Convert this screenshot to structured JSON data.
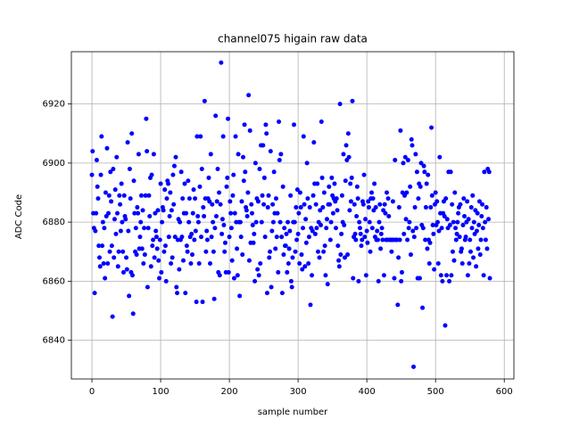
{
  "chart_data": {
    "type": "scatter",
    "title": "channel075 higain raw data",
    "xlabel": "sample number",
    "ylabel": "ADC Code",
    "color": "#0000ff",
    "grid": true,
    "xlim": [
      -29.9,
      614
    ],
    "ylim": [
      6826.9,
      6937.7
    ],
    "xticks": [
      0,
      100,
      200,
      300,
      400,
      500,
      600
    ],
    "yticks": [
      6840,
      6860,
      6880,
      6900,
      6920
    ],
    "x": [
      0,
      1,
      2,
      3,
      4,
      5,
      6,
      7,
      8,
      9,
      10,
      11,
      12,
      13,
      14,
      15,
      16,
      17,
      18,
      19,
      20,
      21,
      22,
      23,
      24,
      25,
      26,
      27,
      28,
      29,
      30,
      31,
      32,
      33,
      34,
      35,
      36,
      37,
      38,
      39,
      40,
      41,
      42,
      43,
      44,
      45,
      46,
      47,
      48,
      49,
      50,
      51,
      52,
      53,
      54,
      55,
      56,
      57,
      58,
      59,
      60,
      61,
      62,
      63,
      64,
      65,
      66,
      67,
      68,
      69,
      70,
      71,
      72,
      73,
      74,
      75,
      76,
      77,
      78,
      79,
      80,
      81,
      82,
      83,
      84,
      85,
      86,
      87,
      88,
      89,
      90,
      91,
      92,
      93,
      94,
      95,
      96,
      97,
      98,
      99,
      100,
      101,
      102,
      103,
      104,
      105,
      106,
      107,
      108,
      109,
      110,
      111,
      112,
      113,
      114,
      115,
      116,
      117,
      118,
      119,
      120,
      121,
      122,
      123,
      124,
      125,
      126,
      127,
      128,
      129,
      130,
      131,
      132,
      133,
      134,
      135,
      136,
      137,
      138,
      139,
      140,
      141,
      142,
      143,
      144,
      145,
      146,
      147,
      148,
      149,
      150,
      151,
      152,
      153,
      154,
      155,
      156,
      157,
      158,
      159,
      160,
      161,
      162,
      163,
      164,
      165,
      166,
      167,
      168,
      169,
      170,
      171,
      172,
      173,
      174,
      175,
      176,
      177,
      178,
      179,
      180,
      181,
      182,
      183,
      184,
      185,
      186,
      187,
      188,
      189,
      190,
      191,
      192,
      193,
      194,
      195,
      196,
      197,
      198,
      199,
      200,
      201,
      202,
      203,
      204,
      205,
      206,
      207,
      208,
      209,
      210,
      211,
      212,
      213,
      214,
      215,
      216,
      217,
      218,
      219,
      220,
      221,
      222,
      223,
      224,
      225,
      226,
      227,
      228,
      229,
      230,
      231,
      232,
      233,
      234,
      235,
      236,
      237,
      238,
      239,
      240,
      241,
      242,
      243,
      244,
      245,
      246,
      247,
      248,
      249,
      250,
      251,
      252,
      253,
      254,
      255,
      256,
      257,
      258,
      259,
      260,
      261,
      262,
      263,
      264,
      265,
      266,
      267,
      268,
      269,
      270,
      271,
      272,
      273,
      274,
      275,
      276,
      277,
      278,
      279,
      280,
      281,
      282,
      283,
      284,
      285,
      286,
      287,
      288,
      289,
      290,
      291,
      292,
      293,
      294,
      295,
      296,
      297,
      298,
      299,
      300,
      301,
      302,
      303,
      304,
      305,
      306,
      307,
      308,
      309,
      310,
      311,
      312,
      313,
      314,
      315,
      316,
      317,
      318,
      319,
      320,
      321,
      322,
      323,
      324,
      325,
      326,
      327,
      328,
      329,
      330,
      331,
      332,
      333,
      334,
      335,
      336,
      337,
      338,
      339,
      340,
      341,
      342,
      343,
      344,
      345,
      346,
      347,
      348,
      349,
      350,
      351,
      352,
      353,
      354,
      355,
      356,
      357,
      358,
      359,
      360,
      361,
      362,
      363,
      364,
      365,
      366,
      367,
      368,
      369,
      370,
      371,
      372,
      373,
      374,
      375,
      376,
      377,
      378,
      379,
      380,
      381,
      382,
      383,
      384,
      385,
      386,
      387,
      388,
      389,
      390,
      391,
      392,
      393,
      394,
      395,
      396,
      397,
      398,
      399,
      400,
      401,
      402,
      403,
      404,
      405,
      406,
      407,
      408,
      409,
      410,
      411,
      412,
      413,
      414,
      415,
      416,
      417,
      418,
      419,
      420,
      421,
      422,
      423,
      424,
      425,
      426,
      427,
      428,
      429,
      430,
      431,
      432,
      433,
      434,
      435,
      436,
      437,
      438,
      439,
      440,
      441,
      442,
      443,
      444,
      445,
      446,
      447,
      448,
      449,
      450,
      451,
      452,
      453,
      454,
      455,
      456,
      457,
      458,
      459,
      460,
      461,
      462,
      463,
      464,
      465,
      466,
      467,
      468,
      469,
      470,
      471,
      472,
      473,
      474,
      475,
      476,
      477,
      478,
      479,
      480,
      481,
      482,
      483,
      484,
      485,
      486,
      487,
      488,
      489,
      490,
      491,
      492,
      493,
      494,
      495,
      496,
      497,
      498,
      499,
      500,
      501,
      502,
      503,
      504,
      505,
      506,
      507,
      508,
      509,
      510,
      511,
      512,
      513,
      514,
      515,
      516,
      517,
      518,
      519,
      520,
      521,
      522,
      523,
      524,
      525,
      526,
      527,
      528,
      529,
      530,
      531,
      532,
      533,
      534,
      535,
      536,
      537,
      538,
      539,
      540,
      541,
      542,
      543,
      544,
      545,
      546,
      547,
      548,
      549,
      550,
      551,
      552,
      553,
      554,
      555,
      556,
      557,
      558,
      559,
      560,
      561,
      562,
      563,
      564,
      565,
      566,
      567,
      568,
      569,
      570,
      571,
      572,
      573,
      574,
      575,
      576,
      577,
      578,
      579
    ],
    "values": [
      6896,
      6904,
      6883,
      6878,
      6856,
      6877,
      6883,
      6901,
      6892,
      6888,
      6872,
      6868,
      6865,
      6896,
      6909,
      6872,
      6880,
      6866,
      6878,
      6861,
      6890,
      6882,
      6905,
      6866,
      6883,
      6889,
      6870,
      6897,
      6887,
      6872,
      6848,
      6898,
      6868,
      6881,
      6891,
      6876,
      6902,
      6883,
      6865,
      6870,
      6889,
      6886,
      6877,
      6893,
      6880,
      6870,
      6863,
      6889,
      6882,
      6881,
      6868,
      6864,
      6907,
      6877,
      6855,
      6898,
      6888,
      6863,
      6910,
      6862,
      6849,
      6894,
      6883,
      6870,
      6878,
      6869,
      6885,
      6883,
      6903,
      6871,
      6875,
      6880,
      6889,
      6871,
      6884,
      6866,
      6878,
      6869,
      6889,
      6915,
      6904,
      6858,
      6878,
      6889,
      6882,
      6895,
      6865,
      6896,
      6872,
      6874,
      6903,
      6868,
      6883,
      6877,
      6875,
      6871,
      6884,
      6867,
      6861,
      6874,
      6893,
      6863,
      6880,
      6885,
      6884,
      6870,
      6891,
      6872,
      6860,
      6888,
      6894,
      6893,
      6875,
      6882,
      6890,
      6866,
      6884,
      6868,
      6896,
      6886,
      6899,
      6875,
      6902,
      6858,
      6856,
      6874,
      6881,
      6864,
      6880,
      6874,
      6897,
      6875,
      6888,
      6867,
      6883,
      6893,
      6856,
      6883,
      6872,
      6870,
      6894,
      6880,
      6888,
      6875,
      6866,
      6876,
      6869,
      6883,
      6891,
      6874,
      6888,
      6877,
      6853,
      6909,
      6882,
      6880,
      6866,
      6892,
      6909,
      6875,
      6898,
      6853,
      6885,
      6882,
      6921,
      6888,
      6870,
      6877,
      6874,
      6888,
      6895,
      6887,
      6866,
      6903,
      6875,
      6886,
      6880,
      6870,
      6854,
      6878,
      6916,
      6882,
      6887,
      6898,
      6863,
      6890,
      6862,
      6886,
      6934,
      6876,
      6881,
      6909,
      6879,
      6870,
      6873,
      6863,
      6892,
      6895,
      6915,
      6863,
      6875,
      6887,
      6883,
      6878,
      6867,
      6889,
      6896,
      6861,
      6883,
      6909,
      6880,
      6871,
      6862,
      6903,
      6880,
      6855,
      6880,
      6875,
      6887,
      6869,
      6902,
      6894,
      6913,
      6897,
      6885,
      6884,
      6882,
      6890,
      6923,
      6867,
      6911,
      6873,
      6886,
      6883,
      6879,
      6873,
      6876,
      6860,
      6900,
      6880,
      6888,
      6864,
      6887,
      6862,
      6898,
      6866,
      6906,
      6880,
      6889,
      6906,
      6886,
      6895,
      6875,
      6913,
      6910,
      6856,
      6885,
      6889,
      6868,
      6870,
      6904,
      6858,
      6877,
      6886,
      6880,
      6897,
      6883,
      6871,
      6888,
      6875,
      6883,
      6863,
      6914,
      6901,
      6880,
      6903,
      6875,
      6856,
      6892,
      6869,
      6878,
      6872,
      6872,
      6876,
      6863,
      6880,
      6866,
      6871,
      6877,
      6889,
      6860,
      6858,
      6868,
      6880,
      6913,
      6880,
      6870,
      6885,
      6874,
      6891,
      6876,
      6883,
      6866,
      6890,
      6885,
      6869,
      6864,
      6878,
      6909,
      6886,
      6865,
      6881,
      6873,
      6900,
      6888,
      6866,
      6875,
      6885,
      6852,
      6878,
      6862,
      6877,
      6889,
      6907,
      6893,
      6876,
      6886,
      6878,
      6893,
      6870,
      6880,
      6868,
      6884,
      6879,
      6914,
      6895,
      6885,
      6870,
      6890,
      6872,
      6862,
      6878,
      6881,
      6859,
      6886,
      6892,
      6886,
      6874,
      6880,
      6895,
      6889,
      6883,
      6888,
      6893,
      6887,
      6878,
      6888,
      6884,
      6872,
      6867,
      6865,
      6920,
      6869,
      6876,
      6889,
      6880,
      6903,
      6879,
      6868,
      6894,
      6906,
      6901,
      6869,
      6910,
      6902,
      6884,
      6893,
      6887,
      6895,
      6921,
      6861,
      6875,
      6886,
      6876,
      6874,
      6882,
      6892,
      6888,
      6860,
      6880,
      6878,
      6876,
      6872,
      6874,
      6887,
      6886,
      6896,
      6875,
      6881,
      6862,
      6877,
      6873,
      6887,
      6885,
      6880,
      6870,
      6888,
      6890,
      6878,
      6888,
      6884,
      6893,
      6875,
      6885,
      6874,
      6877,
      6874,
      6860,
      6880,
      6886,
      6871,
      6876,
      6878,
      6874,
      6884,
      6862,
      6886,
      6883,
      6874,
      6890,
      6874,
      6888,
      6882,
      6874,
      6874,
      6874,
      6870,
      6874,
      6887,
      6874,
      6861,
      6901,
      6874,
      6874,
      6874,
      6852,
      6868,
      6885,
      6874,
      6911,
      6860,
      6863,
      6890,
      6900,
      6876,
      6889,
      6902,
      6881,
      6890,
      6874,
      6901,
      6878,
      6880,
      6892,
      6869,
      6908,
      6906,
      6877,
      6831,
      6875,
      6885,
      6903,
      6878,
      6897,
      6861,
      6888,
      6893,
      6861,
      6892,
      6900,
      6879,
      6851,
      6878,
      6899,
      6897,
      6874,
      6885,
      6893,
      6871,
      6896,
      6874,
      6866,
      6873,
      6885,
      6912,
      6889,
      6879,
      6876,
      6864,
      6886,
      6890,
      6879,
      6887,
      6880,
      6866,
      6877,
      6902,
      6883,
      6862,
      6878,
      6860,
      6883,
      6887,
      6882,
      6845,
      6888,
      6862,
      6881,
      6878,
      6897,
      6860,
      6879,
      6897,
      6862,
      6886,
      6870,
      6880,
      6867,
      6890,
      6878,
      6874,
      6876,
      6880,
      6883,
      6885,
      6875,
      6886,
      6870,
      6871,
      6866,
      6879,
      6888,
      6882,
      6874,
      6875,
      6880,
      6887,
      6862,
      6881,
      6866,
      6874,
      6870,
      6885,
      6878,
      6889,
      6868,
      6880,
      6876,
      6884,
      6865,
      6877,
      6883,
      6871,
      6879,
      6887,
      6869,
      6874,
      6882,
      6886,
      6878,
      6862,
      6897,
      6880,
      6874,
      6885,
      6871,
      6898,
      6881,
      6897,
      6861
    ]
  }
}
